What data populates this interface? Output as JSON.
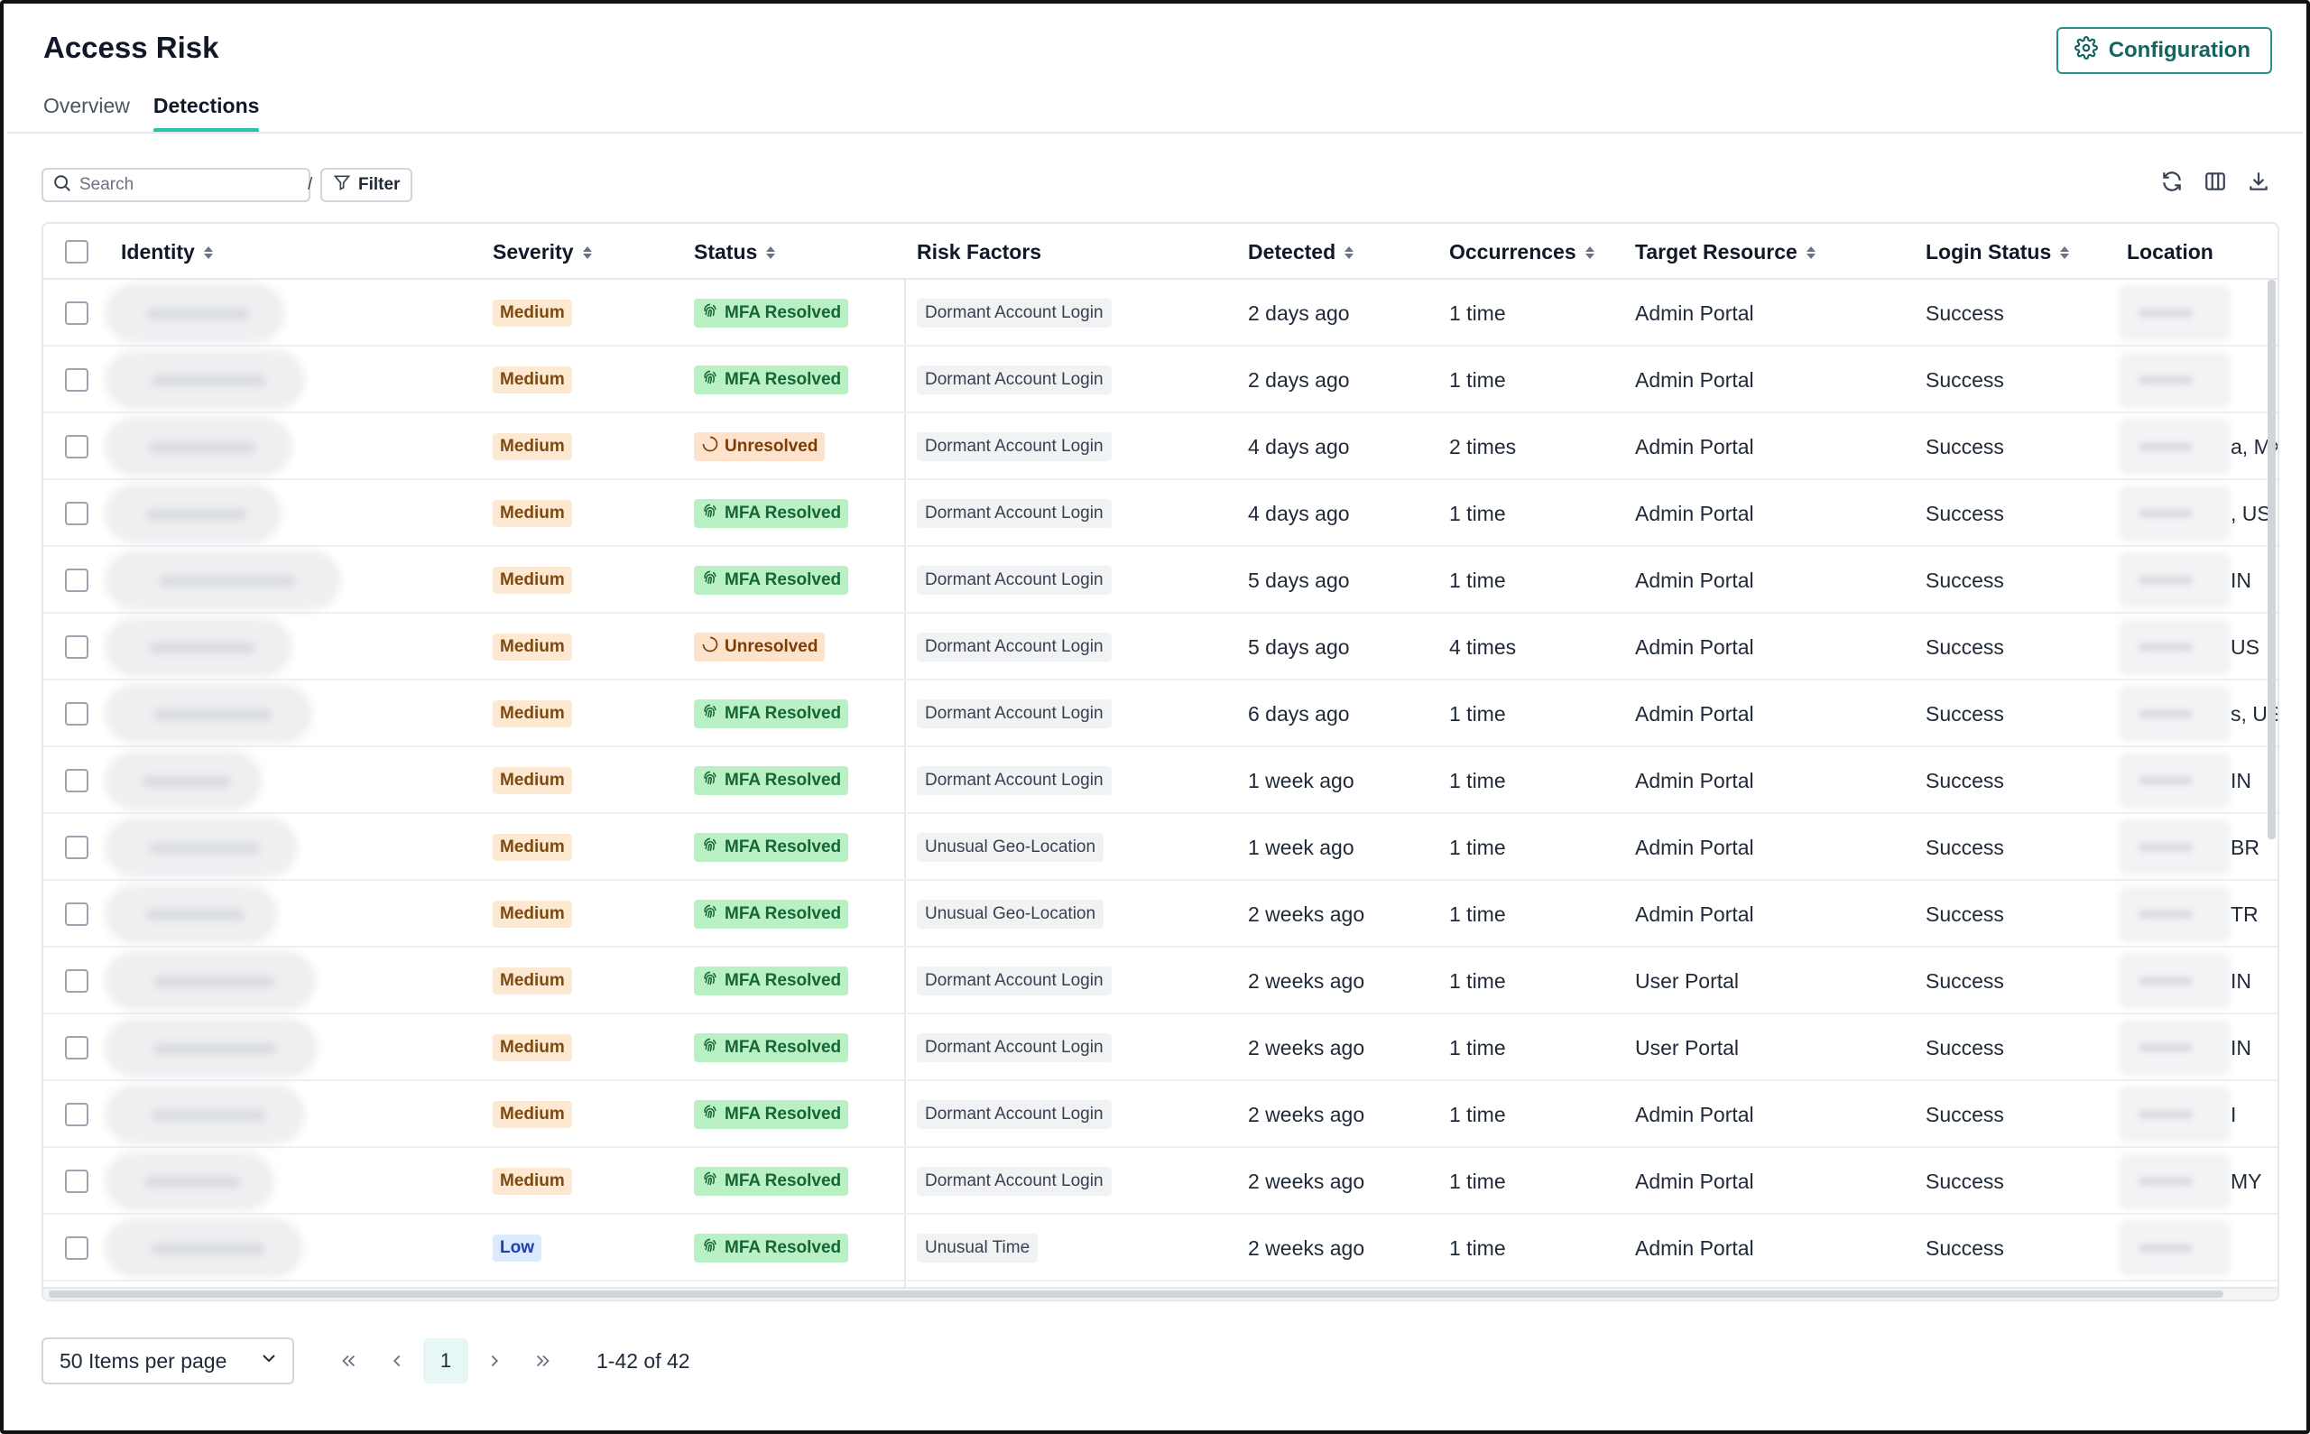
{
  "header": {
    "title": "Access Risk",
    "config_label": "Configuration"
  },
  "tabs": [
    {
      "label": "Overview",
      "active": false
    },
    {
      "label": "Detections",
      "active": true
    }
  ],
  "toolbar": {
    "search_placeholder": "Search",
    "search_shortcut": "/",
    "filter_label": "Filter",
    "icons": [
      "refresh-icon",
      "columns-icon",
      "download-icon"
    ]
  },
  "table": {
    "columns": [
      {
        "label": "Identity",
        "sortable": true
      },
      {
        "label": "Severity",
        "sortable": true
      },
      {
        "label": "Status",
        "sortable": true
      },
      {
        "label": "Risk Factors",
        "sortable": false
      },
      {
        "label": "Detected",
        "sortable": true
      },
      {
        "label": "Occurrences",
        "sortable": true
      },
      {
        "label": "Target Resource",
        "sortable": true
      },
      {
        "label": "Login Status",
        "sortable": true
      },
      {
        "label": "Location",
        "sortable": false
      }
    ],
    "rows": [
      {
        "severity": "Medium",
        "status": "MFA Resolved",
        "status_type": "mfa",
        "risk": "Dormant Account Login",
        "detected": "2 days ago",
        "occurrences": "1 time",
        "target": "Admin Portal",
        "login": "Success",
        "loc": ""
      },
      {
        "severity": "Medium",
        "status": "MFA Resolved",
        "status_type": "mfa",
        "risk": "Dormant Account Login",
        "detected": "2 days ago",
        "occurrences": "1 time",
        "target": "Admin Portal",
        "login": "Success",
        "loc": ""
      },
      {
        "severity": "Medium",
        "status": "Unresolved",
        "status_type": "unres",
        "risk": "Dormant Account Login",
        "detected": "4 days ago",
        "occurrences": "2 times",
        "target": "Admin Portal",
        "login": "Success",
        "loc": "a, MX"
      },
      {
        "severity": "Medium",
        "status": "MFA Resolved",
        "status_type": "mfa",
        "risk": "Dormant Account Login",
        "detected": "4 days ago",
        "occurrences": "1 time",
        "target": "Admin Portal",
        "login": "Success",
        "loc": ", US"
      },
      {
        "severity": "Medium",
        "status": "MFA Resolved",
        "status_type": "mfa",
        "risk": "Dormant Account Login",
        "detected": "5 days ago",
        "occurrences": "1 time",
        "target": "Admin Portal",
        "login": "Success",
        "loc": "IN"
      },
      {
        "severity": "Medium",
        "status": "Unresolved",
        "status_type": "unres",
        "risk": "Dormant Account Login",
        "detected": "5 days ago",
        "occurrences": "4 times",
        "target": "Admin Portal",
        "login": "Success",
        "loc": "US"
      },
      {
        "severity": "Medium",
        "status": "MFA Resolved",
        "status_type": "mfa",
        "risk": "Dormant Account Login",
        "detected": "6 days ago",
        "occurrences": "1 time",
        "target": "Admin Portal",
        "login": "Success",
        "loc": "s, US"
      },
      {
        "severity": "Medium",
        "status": "MFA Resolved",
        "status_type": "mfa",
        "risk": "Dormant Account Login",
        "detected": "1 week ago",
        "occurrences": "1 time",
        "target": "Admin Portal",
        "login": "Success",
        "loc": "IN"
      },
      {
        "severity": "Medium",
        "status": "MFA Resolved",
        "status_type": "mfa",
        "risk": "Unusual Geo-Location",
        "detected": "1 week ago",
        "occurrences": "1 time",
        "target": "Admin Portal",
        "login": "Success",
        "loc": "BR"
      },
      {
        "severity": "Medium",
        "status": "MFA Resolved",
        "status_type": "mfa",
        "risk": "Unusual Geo-Location",
        "detected": "2 weeks ago",
        "occurrences": "1 time",
        "target": "Admin Portal",
        "login": "Success",
        "loc": "TR"
      },
      {
        "severity": "Medium",
        "status": "MFA Resolved",
        "status_type": "mfa",
        "risk": "Dormant Account Login",
        "detected": "2 weeks ago",
        "occurrences": "1 time",
        "target": "User Portal",
        "login": "Success",
        "loc": "IN"
      },
      {
        "severity": "Medium",
        "status": "MFA Resolved",
        "status_type": "mfa",
        "risk": "Dormant Account Login",
        "detected": "2 weeks ago",
        "occurrences": "1 time",
        "target": "User Portal",
        "login": "Success",
        "loc": "IN"
      },
      {
        "severity": "Medium",
        "status": "MFA Resolved",
        "status_type": "mfa",
        "risk": "Dormant Account Login",
        "detected": "2 weeks ago",
        "occurrences": "1 time",
        "target": "Admin Portal",
        "login": "Success",
        "loc": "I"
      },
      {
        "severity": "Medium",
        "status": "MFA Resolved",
        "status_type": "mfa",
        "risk": "Dormant Account Login",
        "detected": "2 weeks ago",
        "occurrences": "1 time",
        "target": "Admin Portal",
        "login": "Success",
        "loc": "MY"
      },
      {
        "severity": "Low",
        "status": "MFA Resolved",
        "status_type": "mfa",
        "risk": "Unusual Time",
        "detected": "2 weeks ago",
        "occurrences": "1 time",
        "target": "Admin Portal",
        "login": "Success",
        "loc": ""
      }
    ]
  },
  "pagination": {
    "per_page_label": "50 Items per page",
    "current_page": "1",
    "range_label": "1-42 of 42"
  },
  "colors": {
    "accent": "#2ebfb3",
    "config_border": "#2a8f8a",
    "medium_bg": "#fde9d2",
    "low_bg": "#dbeafe",
    "mfa_bg": "#b9f0c4",
    "unresolved_bg": "#fde3cc"
  }
}
